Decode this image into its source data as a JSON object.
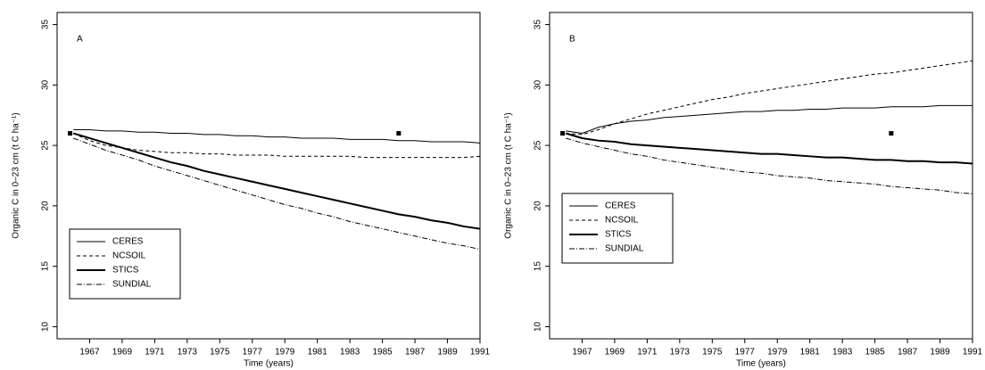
{
  "chart_data": [
    {
      "type": "line",
      "panel_label": "A",
      "xlabel": "Time (years)",
      "ylabel": "Organic C in 0–23 cm (t C ha⁻¹)",
      "xlim": [
        1965,
        1991
      ],
      "ylim": [
        9,
        36
      ],
      "xticks": [
        1967,
        1969,
        1971,
        1973,
        1975,
        1977,
        1979,
        1981,
        1983,
        1985,
        1987,
        1989,
        1991
      ],
      "yticks": [
        10,
        15,
        20,
        25,
        30,
        35
      ],
      "legend": "bottom-left",
      "x": [
        1966,
        1967,
        1968,
        1969,
        1970,
        1971,
        1972,
        1973,
        1974,
        1975,
        1976,
        1977,
        1978,
        1979,
        1980,
        1981,
        1982,
        1983,
        1984,
        1985,
        1986,
        1987,
        1988,
        1989,
        1990,
        1991
      ],
      "series": [
        {
          "name": "CERES",
          "color": "#000000",
          "line_style": "solid",
          "width": 1,
          "values": [
            26.3,
            26.3,
            26.2,
            26.2,
            26.1,
            26.1,
            26.0,
            26.0,
            25.9,
            25.9,
            25.8,
            25.8,
            25.7,
            25.7,
            25.6,
            25.6,
            25.6,
            25.5,
            25.5,
            25.5,
            25.4,
            25.4,
            25.3,
            25.3,
            25.3,
            25.2
          ]
        },
        {
          "name": "NCSOIL",
          "color": "#000000",
          "line_style": "dashed",
          "width": 1,
          "values": [
            26.0,
            25.4,
            25.0,
            24.8,
            24.6,
            24.5,
            24.4,
            24.4,
            24.3,
            24.3,
            24.2,
            24.2,
            24.2,
            24.1,
            24.1,
            24.1,
            24.1,
            24.1,
            24.0,
            24.0,
            24.0,
            24.0,
            24.0,
            24.0,
            24.0,
            24.1
          ]
        },
        {
          "name": "STICS",
          "color": "#000000",
          "line_style": "solid",
          "width": 2,
          "values": [
            26.0,
            25.6,
            25.2,
            24.8,
            24.4,
            24.0,
            23.6,
            23.3,
            22.9,
            22.6,
            22.3,
            22.0,
            21.7,
            21.4,
            21.1,
            20.8,
            20.5,
            20.2,
            19.9,
            19.6,
            19.3,
            19.1,
            18.8,
            18.6,
            18.3,
            18.1
          ]
        },
        {
          "name": "SUNDIAL",
          "color": "#000000",
          "line_style": "dashdot",
          "width": 1,
          "values": [
            25.6,
            25.1,
            24.6,
            24.2,
            23.8,
            23.3,
            22.9,
            22.5,
            22.1,
            21.7,
            21.3,
            20.9,
            20.5,
            20.1,
            19.8,
            19.4,
            19.1,
            18.7,
            18.4,
            18.1,
            17.8,
            17.5,
            17.2,
            16.9,
            16.7,
            16.4
          ]
        }
      ],
      "observed": {
        "x": [
          1965.8,
          1986
        ],
        "y": [
          26,
          26
        ]
      }
    },
    {
      "type": "line",
      "panel_label": "B",
      "xlabel": "Time (years)",
      "ylabel": "Organic C in 0–23 cm (t C ha⁻¹)",
      "xlim": [
        1965,
        1991
      ],
      "ylim": [
        9,
        36
      ],
      "xticks": [
        1967,
        1969,
        1971,
        1973,
        1975,
        1977,
        1979,
        1981,
        1983,
        1985,
        1987,
        1989,
        1991
      ],
      "yticks": [
        10,
        15,
        20,
        25,
        30,
        35
      ],
      "legend": "left",
      "x": [
        1966,
        1967,
        1968,
        1969,
        1970,
        1971,
        1972,
        1973,
        1974,
        1975,
        1976,
        1977,
        1978,
        1979,
        1980,
        1981,
        1982,
        1983,
        1984,
        1985,
        1986,
        1987,
        1988,
        1989,
        1990,
        1991
      ],
      "series": [
        {
          "name": "CERES",
          "color": "#000000",
          "line_style": "solid",
          "width": 1,
          "values": [
            26.2,
            26.0,
            26.5,
            26.8,
            27.0,
            27.1,
            27.3,
            27.4,
            27.5,
            27.6,
            27.7,
            27.8,
            27.8,
            27.9,
            27.9,
            28.0,
            28.0,
            28.1,
            28.1,
            28.1,
            28.2,
            28.2,
            28.2,
            28.3,
            28.3,
            28.3
          ]
        },
        {
          "name": "NCSOIL",
          "color": "#000000",
          "line_style": "dashed",
          "width": 1,
          "values": [
            26.0,
            25.9,
            26.3,
            26.8,
            27.2,
            27.6,
            27.9,
            28.2,
            28.5,
            28.8,
            29.0,
            29.3,
            29.5,
            29.7,
            29.9,
            30.1,
            30.3,
            30.5,
            30.7,
            30.9,
            31.0,
            31.2,
            31.4,
            31.6,
            31.8,
            32.0
          ]
        },
        {
          "name": "STICS",
          "color": "#000000",
          "line_style": "solid",
          "width": 2,
          "values": [
            26.0,
            25.6,
            25.4,
            25.3,
            25.1,
            25.0,
            24.9,
            24.8,
            24.7,
            24.6,
            24.5,
            24.4,
            24.3,
            24.3,
            24.2,
            24.1,
            24.0,
            24.0,
            23.9,
            23.8,
            23.8,
            23.7,
            23.7,
            23.6,
            23.6,
            23.5
          ]
        },
        {
          "name": "SUNDIAL",
          "color": "#000000",
          "line_style": "dashdot",
          "width": 1,
          "values": [
            25.6,
            25.2,
            24.9,
            24.6,
            24.3,
            24.1,
            23.8,
            23.6,
            23.4,
            23.2,
            23.0,
            22.8,
            22.7,
            22.5,
            22.4,
            22.3,
            22.1,
            22.0,
            21.9,
            21.8,
            21.6,
            21.5,
            21.4,
            21.3,
            21.1,
            21.0
          ]
        }
      ],
      "observed": {
        "x": [
          1965.8,
          1986
        ],
        "y": [
          26,
          26
        ]
      }
    }
  ]
}
